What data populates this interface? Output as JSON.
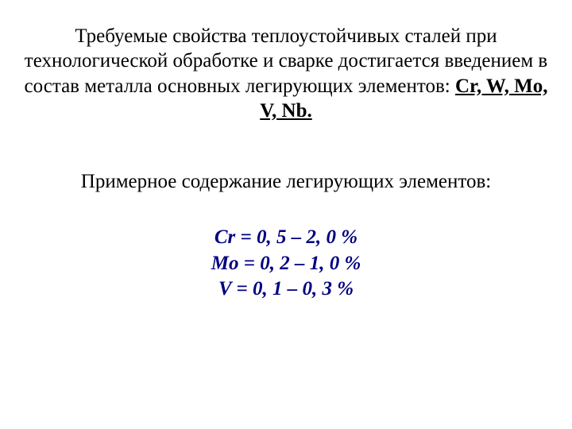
{
  "para1": {
    "text_before": "Требуемые свойства теплоустойчивых сталей при технологической обработке и сварке достигается введением в состав металла основных легирующих элементов: ",
    "elements": "Cr, W, Mo, V, Nb."
  },
  "para2": "Примерное содержание легирующих элементов:",
  "values": {
    "cr": "Cr = 0, 5 – 2, 0 %",
    "mo": "Mo = 0, 2 – 1, 0 %",
    "v": "V = 0, 1 – 0, 3 %"
  },
  "styling": {
    "background_color": "#ffffff",
    "text_color": "#000000",
    "accent_color": "#000080",
    "font_family": "Times New Roman",
    "base_fontsize": 25,
    "value_fontweight": "bold",
    "value_fontstyle": "italic"
  }
}
